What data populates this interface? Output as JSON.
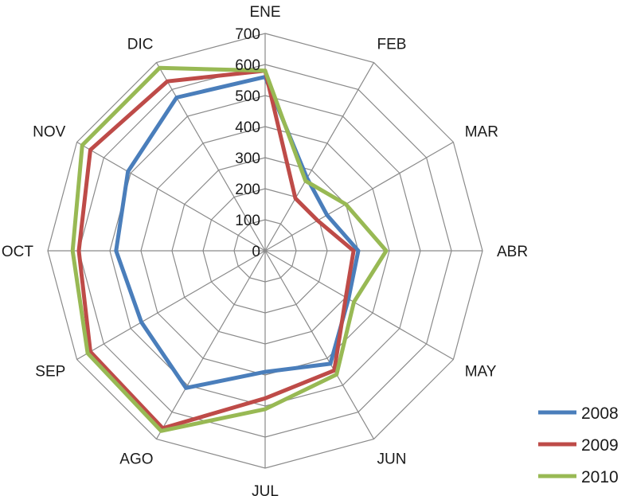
{
  "chart_data": {
    "type": "radar",
    "title": "",
    "categories": [
      "ENE",
      "FEB",
      "MAR",
      "ABR",
      "MAY",
      "JUN",
      "JUL",
      "AGO",
      "SEP",
      "OCT",
      "NOV",
      "DIC"
    ],
    "rlim": [
      0,
      700
    ],
    "ticks": [
      0,
      100,
      200,
      300,
      400,
      500,
      600,
      700
    ],
    "tick_labels": [
      "0",
      "100",
      "200",
      "300",
      "400",
      "500",
      "600",
      "700"
    ],
    "grid": true,
    "legend_position": "bottom-right",
    "series": [
      {
        "name": "2008",
        "color": "#4a7ebb",
        "values": [
          560,
          270,
          230,
          300,
          310,
          420,
          390,
          510,
          460,
          480,
          510,
          570
        ]
      },
      {
        "name": "2009",
        "color": "#be4b48",
        "values": [
          580,
          195,
          195,
          285,
          300,
          445,
          475,
          660,
          650,
          600,
          650,
          630
        ]
      },
      {
        "name": "2010",
        "color": "#98b954",
        "values": [
          580,
          260,
          300,
          390,
          330,
          460,
          510,
          670,
          660,
          620,
          680,
          680
        ]
      }
    ]
  }
}
